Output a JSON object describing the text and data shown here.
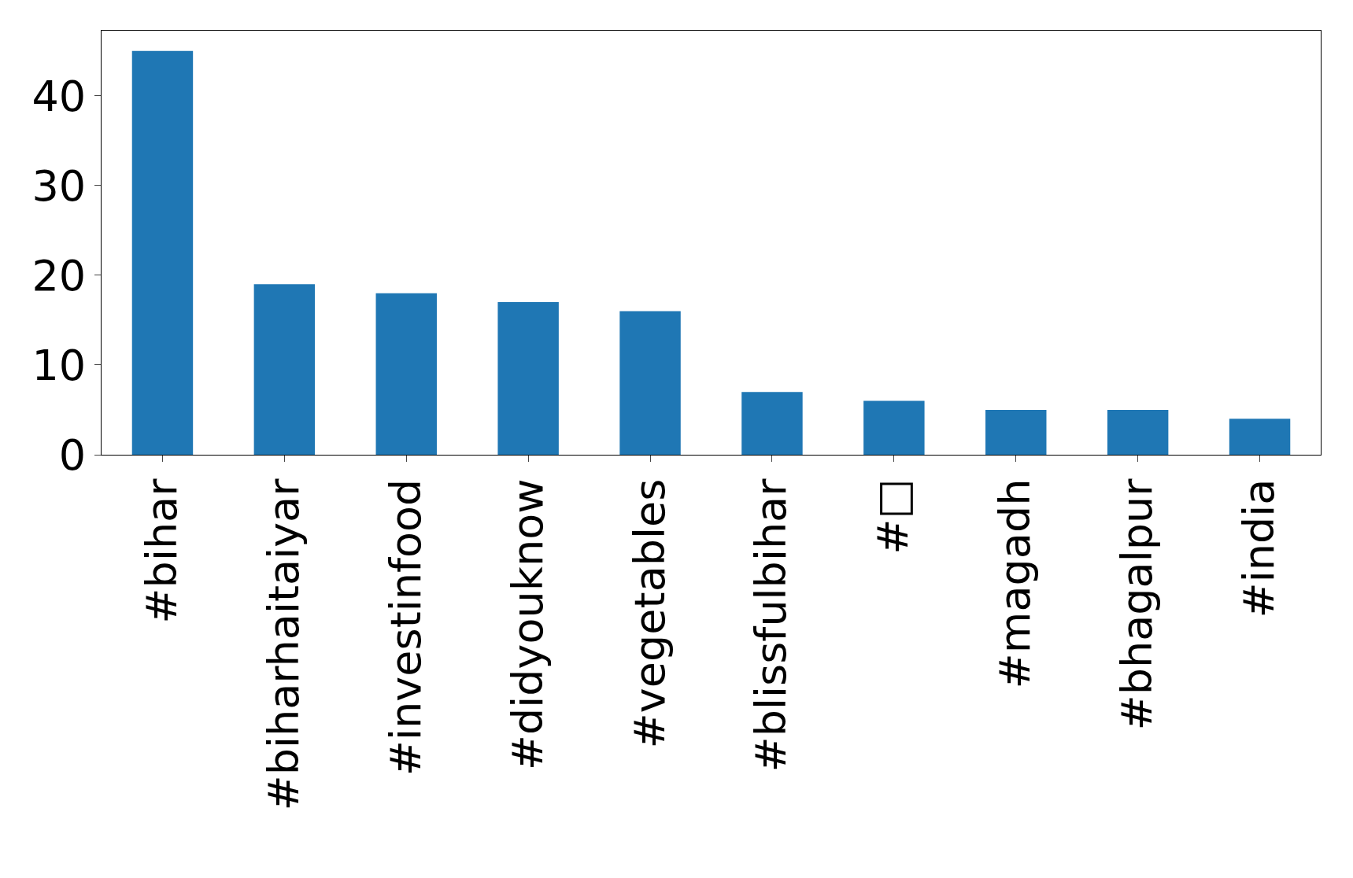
{
  "chart_data": {
    "type": "bar",
    "categories": [
      "#bihar",
      "#biharhaitaiyar",
      "#investinfood",
      "#didyouknow",
      "#vegetables",
      "#blissfulbihar",
      "#□",
      "#magadh",
      "#bhagalpur",
      "#india"
    ],
    "values": [
      45,
      19,
      18,
      17,
      16,
      7,
      6,
      5,
      5,
      4
    ],
    "color": "#1f77b4",
    "ylim": [
      0,
      47.25
    ],
    "yticks": [
      0,
      10,
      20,
      30,
      40
    ]
  }
}
